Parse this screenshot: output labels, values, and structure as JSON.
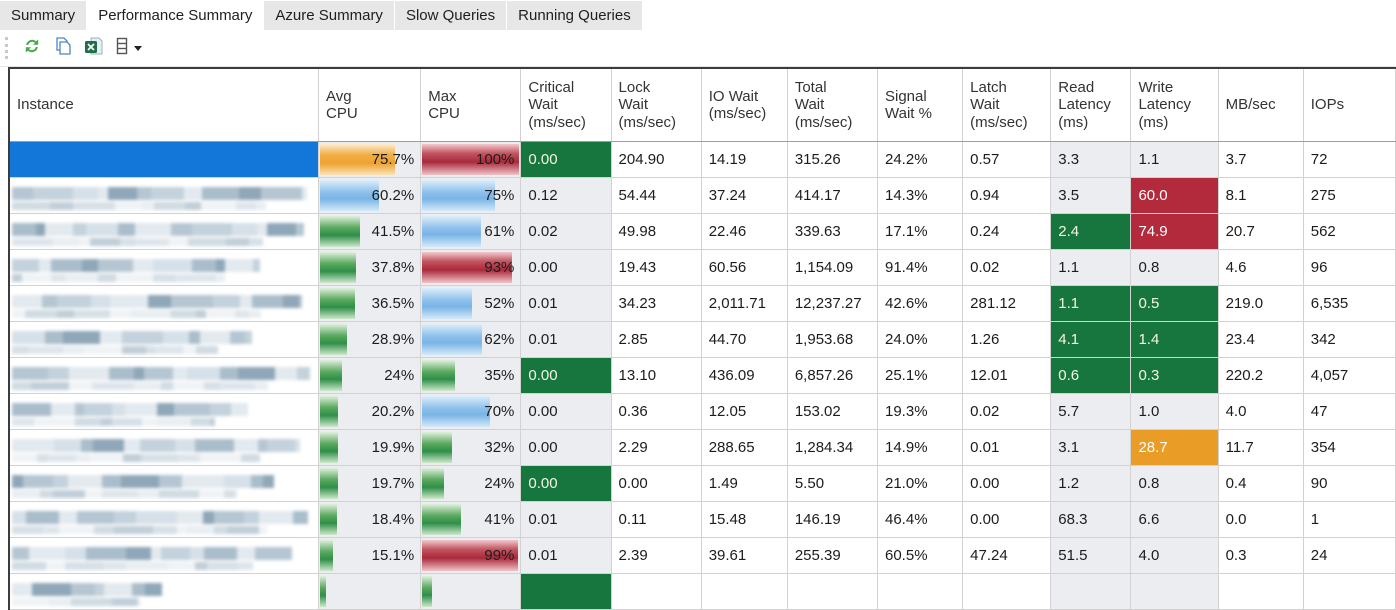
{
  "tabs": [
    {
      "label": "Summary",
      "active": false
    },
    {
      "label": "Performance Summary",
      "active": true
    },
    {
      "label": "Azure Summary",
      "active": false
    },
    {
      "label": "Slow Queries",
      "active": false
    },
    {
      "label": "Running Queries",
      "active": false
    }
  ],
  "toolbar": {
    "icons": [
      "refresh-icon",
      "copy-icon",
      "export-excel-icon",
      "column-chooser-icon"
    ],
    "has_dropdown_caret": true
  },
  "colors": {
    "selection_blue": "#1277d9",
    "cell_green": "#17763e",
    "cell_red": "#b22a3b",
    "cell_orange": "#e99c26",
    "tint_column_bg": "#ecedf1"
  },
  "grid": {
    "columns": [
      {
        "name": "instance",
        "lines": [
          "Instance"
        ]
      },
      {
        "name": "avg-cpu",
        "lines": [
          "Avg",
          "CPU"
        ]
      },
      {
        "name": "max-cpu",
        "lines": [
          "Max",
          "CPU"
        ]
      },
      {
        "name": "critical-wait",
        "lines": [
          "Critical",
          "Wait",
          "(ms/sec)"
        ]
      },
      {
        "name": "lock-wait",
        "lines": [
          "Lock",
          "Wait",
          "(ms/sec)"
        ]
      },
      {
        "name": "io-wait",
        "lines": [
          "IO Wait",
          "(ms/sec)"
        ]
      },
      {
        "name": "total-wait",
        "lines": [
          "Total",
          "Wait",
          "(ms/sec)"
        ]
      },
      {
        "name": "signal-wait",
        "lines": [
          "Signal",
          "Wait %"
        ]
      },
      {
        "name": "latch-wait",
        "lines": [
          "Latch",
          "Wait",
          "(ms/sec)"
        ]
      },
      {
        "name": "read-latency",
        "lines": [
          "Read",
          "Latency",
          "(ms)"
        ]
      },
      {
        "name": "write-latency",
        "lines": [
          "Write",
          "Latency",
          "(ms)"
        ]
      },
      {
        "name": "mb-sec",
        "lines": [
          "MB/sec"
        ]
      },
      {
        "name": "iops",
        "lines": [
          "IOPs"
        ]
      }
    ],
    "rows": [
      {
        "selected": true,
        "redact_width": 0,
        "avg_label": "75.7%",
        "avg_pct": 75.7,
        "avg_level": "orange",
        "max_label": "100%",
        "max_pct": 100,
        "max_level": "red",
        "critical": "0.00",
        "critical_bg": "green",
        "lock": "204.90",
        "io": "14.19",
        "total": "315.26",
        "signal": "24.2%",
        "latch": "0.57",
        "read": "3.3",
        "read_bg": "",
        "write": "1.1",
        "write_bg": "",
        "mb": "3.7",
        "iops": "72"
      },
      {
        "selected": false,
        "redact_width": 295,
        "avg_label": "60.2%",
        "avg_pct": 60.2,
        "avg_level": "blue",
        "max_label": "75%",
        "max_pct": 75,
        "max_level": "blue",
        "critical": "0.12",
        "critical_bg": "",
        "lock": "54.44",
        "io": "37.24",
        "total": "414.17",
        "signal": "14.3%",
        "latch": "0.94",
        "read": "3.5",
        "read_bg": "",
        "write": "60.0",
        "write_bg": "red",
        "mb": "8.1",
        "iops": "275"
      },
      {
        "selected": false,
        "redact_width": 292,
        "avg_label": "41.5%",
        "avg_pct": 41.5,
        "avg_level": "green",
        "max_label": "61%",
        "max_pct": 61,
        "max_level": "blue",
        "critical": "0.02",
        "critical_bg": "",
        "lock": "49.98",
        "io": "22.46",
        "total": "339.63",
        "signal": "17.1%",
        "latch": "0.24",
        "read": "2.4",
        "read_bg": "green",
        "write": "74.9",
        "write_bg": "red",
        "mb": "20.7",
        "iops": "562"
      },
      {
        "selected": false,
        "redact_width": 248,
        "avg_label": "37.8%",
        "avg_pct": 37.8,
        "avg_level": "green",
        "max_label": "93%",
        "max_pct": 93,
        "max_level": "red",
        "critical": "0.00",
        "critical_bg": "",
        "lock": "19.43",
        "io": "60.56",
        "total": "1,154.09",
        "signal": "91.4%",
        "latch": "0.02",
        "read": "1.1",
        "read_bg": "",
        "write": "0.8",
        "write_bg": "",
        "mb": "4.6",
        "iops": "96"
      },
      {
        "selected": false,
        "redact_width": 290,
        "avg_label": "36.5%",
        "avg_pct": 36.5,
        "avg_level": "green",
        "max_label": "52%",
        "max_pct": 52,
        "max_level": "blue",
        "critical": "0.01",
        "critical_bg": "",
        "lock": "34.23",
        "io": "2,011.71",
        "total": "12,237.27",
        "signal": "42.6%",
        "latch": "281.12",
        "read": "1.1",
        "read_bg": "green",
        "write": "0.5",
        "write_bg": "green",
        "mb": "219.0",
        "iops": "6,535"
      },
      {
        "selected": false,
        "redact_width": 240,
        "avg_label": "28.9%",
        "avg_pct": 28.9,
        "avg_level": "green",
        "max_label": "62%",
        "max_pct": 62,
        "max_level": "blue",
        "critical": "0.01",
        "critical_bg": "",
        "lock": "2.85",
        "io": "44.70",
        "total": "1,953.68",
        "signal": "24.0%",
        "latch": "1.26",
        "read": "4.1",
        "read_bg": "green",
        "write": "1.4",
        "write_bg": "green",
        "mb": "23.4",
        "iops": "342"
      },
      {
        "selected": false,
        "redact_width": 298,
        "avg_label": "24%",
        "avg_pct": 24,
        "avg_level": "green",
        "max_label": "35%",
        "max_pct": 35,
        "max_level": "green",
        "critical": "0.00",
        "critical_bg": "green",
        "lock": "13.10",
        "io": "436.09",
        "total": "6,857.26",
        "signal": "25.1%",
        "latch": "12.01",
        "read": "0.6",
        "read_bg": "green",
        "write": "0.3",
        "write_bg": "green",
        "mb": "220.2",
        "iops": "4,057"
      },
      {
        "selected": false,
        "redact_width": 236,
        "avg_label": "20.2%",
        "avg_pct": 20.2,
        "avg_level": "green",
        "max_label": "70%",
        "max_pct": 70,
        "max_level": "blue",
        "critical": "0.00",
        "critical_bg": "",
        "lock": "0.36",
        "io": "12.05",
        "total": "153.02",
        "signal": "19.3%",
        "latch": "0.02",
        "read": "5.7",
        "read_bg": "",
        "write": "1.0",
        "write_bg": "",
        "mb": "4.0",
        "iops": "47"
      },
      {
        "selected": false,
        "redact_width": 288,
        "avg_label": "19.9%",
        "avg_pct": 19.9,
        "avg_level": "green",
        "max_label": "32%",
        "max_pct": 32,
        "max_level": "green",
        "critical": "0.00",
        "critical_bg": "",
        "lock": "2.29",
        "io": "288.65",
        "total": "1,284.34",
        "signal": "14.9%",
        "latch": "0.01",
        "read": "3.1",
        "read_bg": "",
        "write": "28.7",
        "write_bg": "orange",
        "mb": "11.7",
        "iops": "354"
      },
      {
        "selected": false,
        "redact_width": 262,
        "avg_label": "19.7%",
        "avg_pct": 19.7,
        "avg_level": "green",
        "max_label": "24%",
        "max_pct": 24,
        "max_level": "green",
        "critical": "0.00",
        "critical_bg": "green",
        "lock": "0.00",
        "io": "1.49",
        "total": "5.50",
        "signal": "21.0%",
        "latch": "0.00",
        "read": "1.2",
        "read_bg": "",
        "write": "0.8",
        "write_bg": "",
        "mb": "0.4",
        "iops": "90"
      },
      {
        "selected": false,
        "redact_width": 296,
        "avg_label": "18.4%",
        "avg_pct": 18.4,
        "avg_level": "green",
        "max_label": "41%",
        "max_pct": 41,
        "max_level": "green",
        "critical": "0.01",
        "critical_bg": "",
        "lock": "0.11",
        "io": "15.48",
        "total": "146.19",
        "signal": "46.4%",
        "latch": "0.00",
        "read": "68.3",
        "read_bg": "",
        "write": "6.6",
        "write_bg": "",
        "mb": "0.0",
        "iops": "1"
      },
      {
        "selected": false,
        "redact_width": 280,
        "avg_label": "15.1%",
        "avg_pct": 15.1,
        "avg_level": "green",
        "max_label": "99%",
        "max_pct": 99,
        "max_level": "red",
        "critical": "0.01",
        "critical_bg": "",
        "lock": "2.39",
        "io": "39.61",
        "total": "255.39",
        "signal": "60.5%",
        "latch": "47.24",
        "read": "51.5",
        "read_bg": "",
        "write": "4.0",
        "write_bg": "",
        "mb": "0.3",
        "iops": "24"
      },
      {
        "selected": false,
        "redact_width": 150,
        "avg_label": "",
        "avg_pct": 8,
        "avg_level": "green",
        "max_label": "",
        "max_pct": 12,
        "max_level": "green",
        "critical": "",
        "critical_bg": "green",
        "lock": "",
        "io": "",
        "total": "",
        "signal": "",
        "latch": "",
        "read": "",
        "read_bg": "",
        "write": "",
        "write_bg": "",
        "mb": "",
        "iops": ""
      }
    ]
  }
}
